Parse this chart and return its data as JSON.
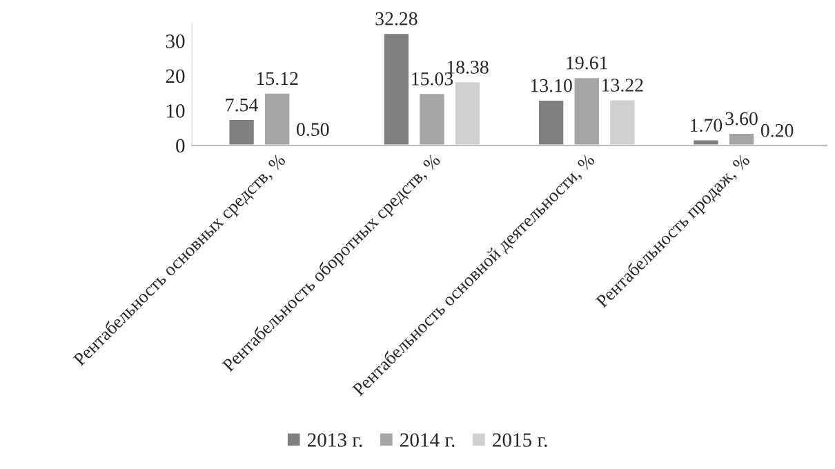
{
  "chart_data": {
    "type": "bar",
    "categories": [
      "Рентабельность основных средств, %",
      "Рентабельность оборотных средств, %",
      "Рентабельность основной деятельности, %",
      "Рентабельность продаж, %"
    ],
    "series": [
      {
        "name": "2013 г.",
        "color": "#808080",
        "values": [
          7.54,
          32.28,
          13.1,
          1.7
        ],
        "value_labels": [
          "7.54",
          "32.28",
          "13.10",
          "1.70"
        ]
      },
      {
        "name": "2014 г.",
        "color": "#a5a5a5",
        "values": [
          15.12,
          15.03,
          19.61,
          3.6
        ],
        "value_labels": [
          "15.12",
          "15.03",
          "19.61",
          "3.60"
        ]
      },
      {
        "name": "2015 г.",
        "color": "#d0d0d0",
        "values": [
          0.5,
          18.38,
          13.22,
          0.2
        ],
        "value_labels": [
          "0.50",
          "18.38",
          "13.22",
          "0.20"
        ]
      }
    ],
    "ylim": [
      0,
      35
    ],
    "yticks": [
      0,
      10,
      20,
      30
    ],
    "grid": false,
    "legend": "bottom"
  }
}
